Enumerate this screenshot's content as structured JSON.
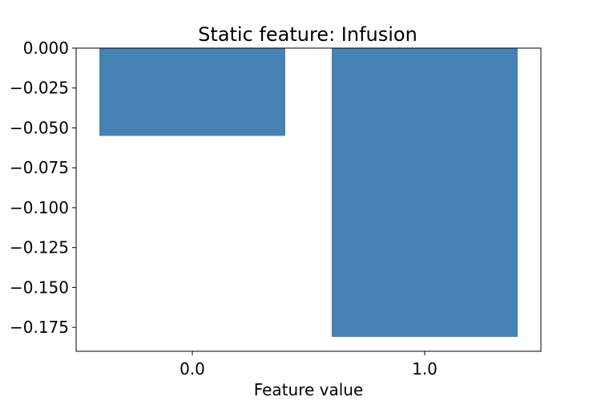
{
  "chart_data": {
    "type": "bar",
    "title": "Static feature: Infusion",
    "xlabel": "Feature value",
    "ylabel": "",
    "categories": [
      "0.0",
      "1.0"
    ],
    "values": [
      -0.055,
      -0.181
    ],
    "ylim": [
      -0.19,
      0.0
    ],
    "yticks": [
      0.0,
      -0.025,
      -0.05,
      -0.075,
      -0.1,
      -0.125,
      -0.15,
      -0.175
    ],
    "ytick_labels": [
      "0.000",
      "−0.025",
      "−0.050",
      "−0.075",
      "−0.100",
      "−0.125",
      "−0.150",
      "−0.175"
    ],
    "grid": false,
    "legend": "none",
    "bar_color": "#4682b4"
  }
}
